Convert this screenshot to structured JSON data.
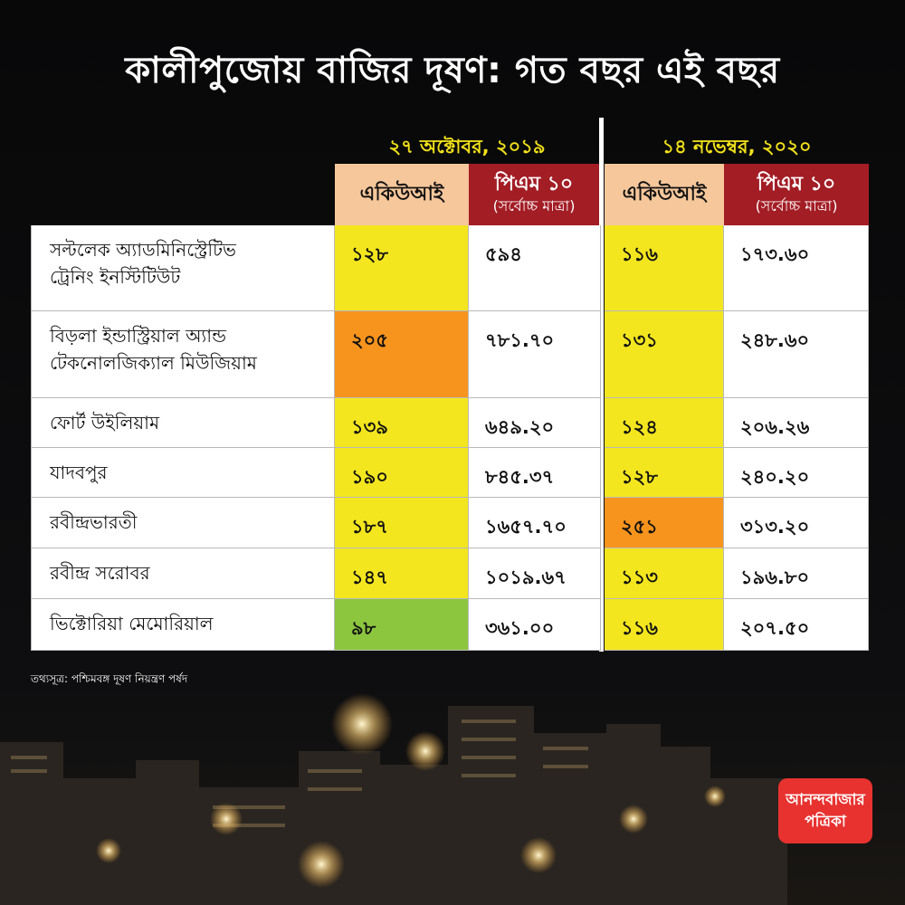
{
  "title": "কালীপুজোয় বাজির দূষণ: গত বছর এই বছর",
  "colors": {
    "aqi_header": "#f6c79b",
    "pm_header": "#a31d25",
    "aqi_yellow": "#f3e61f",
    "aqi_orange": "#f7941e",
    "aqi_green": "#8cc63f",
    "date_text": "#f2e21a"
  },
  "dates": [
    "২৭ অক্টোবর, ২০১৯",
    "১৪ নভেম্বর, ২০২০"
  ],
  "headers": {
    "aqi": "একিউআই",
    "pm_line1": "পিএম ১০",
    "pm_line2": "(সর্বোচ্চ মাত্রা)"
  },
  "chart_data": {
    "type": "table",
    "title": "কালীপুজোয় বাজির দূষণ: গত বছর এই বছর",
    "groups": [
      "২৭ অক্টোবর, ২০১৯",
      "১৪ নভেম্বর, ২০২০"
    ],
    "columns": [
      "একিউআই",
      "পিএম ১০ (সর্বোচ্চ মাত্রা)"
    ],
    "rows": [
      {
        "name": [
          "সল্টলেক অ্যাডমিনিস্ট্রেটিভ",
          "ট্রেনিং ইনস্টিটিউট"
        ],
        "aqi_2019": "১২৮",
        "pm_2019": "৫৯৪",
        "aqi_2020": "১১৬",
        "pm_2020": "১৭৩.৬০",
        "aqi_2019_color": "#f3e61f",
        "aqi_2020_color": "#f3e61f"
      },
      {
        "name": [
          "বিড়লা ইন্ডাস্ট্রিয়াল অ্যান্ড",
          "টেকনোলজিক্যাল মিউজিয়াম"
        ],
        "aqi_2019": "২০৫",
        "pm_2019": "৭৮১.৭০",
        "aqi_2020": "১৩১",
        "pm_2020": "২৪৮.৬০",
        "aqi_2019_color": "#f7941e",
        "aqi_2020_color": "#f3e61f"
      },
      {
        "name": [
          "ফোর্ট উইলিয়াম"
        ],
        "aqi_2019": "১৩৯",
        "pm_2019": "৬৪৯.২০",
        "aqi_2020": "১২৪",
        "pm_2020": "২০৬.২৬",
        "aqi_2019_color": "#f3e61f",
        "aqi_2020_color": "#f3e61f"
      },
      {
        "name": [
          "যাদবপুর"
        ],
        "aqi_2019": "১৯০",
        "pm_2019": "৮৪৫.৩৭",
        "aqi_2020": "১২৮",
        "pm_2020": "২৪০.২০",
        "aqi_2019_color": "#f3e61f",
        "aqi_2020_color": "#f3e61f"
      },
      {
        "name": [
          "রবীন্দ্রভারতী"
        ],
        "aqi_2019": "১৮৭",
        "pm_2019": "১৬৫৭.৭০",
        "aqi_2020": "২৫১",
        "pm_2020": "৩১৩.২০",
        "aqi_2019_color": "#f3e61f",
        "aqi_2020_color": "#f7941e"
      },
      {
        "name": [
          "রবীন্দ্র সরোবর"
        ],
        "aqi_2019": "১৪৭",
        "pm_2019": "১০১৯.৬৭",
        "aqi_2020": "১১৩",
        "pm_2020": "১৯৬.৮০",
        "aqi_2019_color": "#f3e61f",
        "aqi_2020_color": "#f3e61f"
      },
      {
        "name": [
          "ভিক্টোরিয়া মেমোরিয়াল"
        ],
        "aqi_2019": "৯৮",
        "pm_2019": "৩৬১.০০",
        "aqi_2020": "১১৬",
        "pm_2020": "২০৭.৫০",
        "aqi_2019_color": "#8cc63f",
        "aqi_2020_color": "#f3e61f"
      }
    ]
  },
  "source": "তথ্যসূত্র: পশ্চিমবঙ্গ দূষণ নিয়ন্ত্রণ পর্ষদ",
  "logo": [
    "আনন্দবাজার",
    "পত্রিকা"
  ]
}
